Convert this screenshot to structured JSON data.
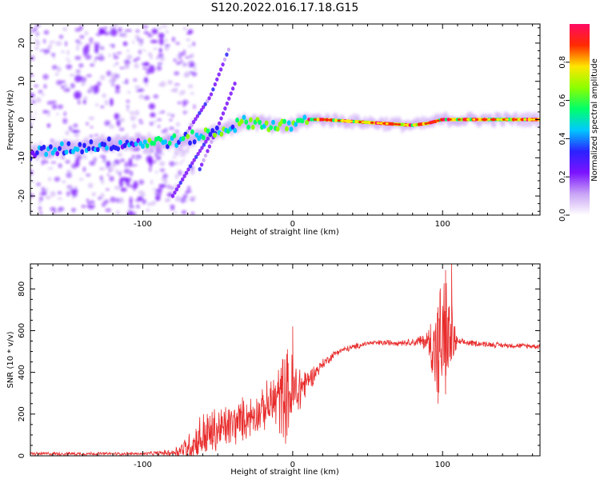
{
  "title": "S120.2022.016.17.18.G15",
  "chart_data": [
    {
      "type": "heatmap",
      "xlabel": "Height of straight line (km)",
      "ylabel": "Frequency (Hz)",
      "xlim": [
        -175,
        165
      ],
      "ylim": [
        -25,
        25
      ],
      "xticks": [
        -100,
        0,
        100
      ],
      "yticks": [
        -20,
        -10,
        0,
        10,
        20
      ],
      "colorbar": {
        "label": "Normalized spectral amplitude",
        "range": [
          0.0,
          1.0
        ],
        "ticks": [
          0.0,
          0.2,
          0.4,
          0.6,
          0.8
        ],
        "colors": [
          "#ffffff",
          "#c9a4f5",
          "#7b12ff",
          "#2b22ff",
          "#00c8ff",
          "#00ff6a",
          "#8cff00",
          "#ffe600",
          "#ff2a00",
          "#ff0a64"
        ]
      },
      "ridge": {
        "x": [
          -175,
          -150,
          -125,
          -100,
          -75,
          -50,
          -30,
          -20,
          -10,
          0,
          10,
          20,
          40,
          60,
          80,
          90,
          100,
          120,
          140,
          165
        ],
        "y": [
          -9,
          -7.5,
          -6.5,
          -6,
          -5.5,
          -3,
          -0.5,
          -1,
          -2,
          -1.5,
          0,
          0,
          -0.5,
          -1,
          -1.5,
          -1,
          0,
          0,
          0,
          0
        ]
      },
      "drift_tracks": [
        {
          "x": [
            -70,
            -55,
            -42
          ],
          "y": [
            -3,
            6,
            19
          ]
        },
        {
          "x": [
            -62,
            -50,
            -38
          ],
          "y": [
            -13,
            -2,
            10
          ]
        },
        {
          "x": [
            -80,
            -68,
            -55
          ],
          "y": [
            -20,
            -12,
            -4
          ]
        }
      ]
    },
    {
      "type": "line",
      "xlabel": "Height of straight line (km)",
      "ylabel": "SNR (10 * v/v)",
      "xlim": [
        -175,
        165
      ],
      "ylim": [
        0,
        920
      ],
      "xticks": [
        -100,
        0,
        100
      ],
      "yticks": [
        0,
        200,
        400,
        600,
        800
      ],
      "color": "#e82a2a",
      "envelope": {
        "x": [
          -175,
          -150,
          -100,
          -80,
          -70,
          -60,
          -40,
          -20,
          -5,
          0,
          10,
          20,
          30,
          50,
          80,
          90,
          95,
          100,
          105,
          110,
          140,
          165
        ],
        "mean": [
          10,
          10,
          10,
          15,
          40,
          90,
          150,
          220,
          300,
          290,
          360,
          440,
          500,
          540,
          545,
          550,
          520,
          540,
          560,
          545,
          530,
          525
        ],
        "amp": [
          10,
          10,
          8,
          20,
          80,
          150,
          130,
          110,
          260,
          250,
          70,
          30,
          20,
          15,
          20,
          60,
          300,
          380,
          280,
          20,
          15,
          15
        ]
      },
      "peaks": [
        {
          "x": 0,
          "y": 620
        },
        {
          "x": 102,
          "y": 890
        },
        {
          "x": 106,
          "y": 920
        },
        {
          "x": 97,
          "y": 250
        }
      ]
    }
  ]
}
